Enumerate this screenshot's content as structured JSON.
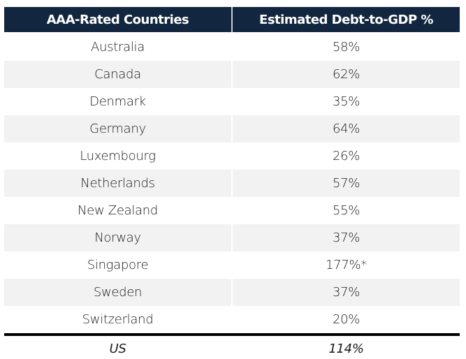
{
  "header": {
    "country_label": "AAA-Rated Countries",
    "value_label": "Estimated Debt-to-GDP %"
  },
  "rows": [
    {
      "country": "Australia",
      "value": "58%"
    },
    {
      "country": "Canada",
      "value": "62%"
    },
    {
      "country": "Denmark",
      "value": "35%"
    },
    {
      "country": "Germany",
      "value": "64%"
    },
    {
      "country": "Luxembourg",
      "value": "26%"
    },
    {
      "country": "Netherlands",
      "value": "57%"
    },
    {
      "country": "New Zealand",
      "value": "55%"
    },
    {
      "country": "Norway",
      "value": "37%"
    },
    {
      "country": "Singapore",
      "value": "177%*"
    },
    {
      "country": "Sweden",
      "value": "37%"
    },
    {
      "country": "Switzerland",
      "value": "20%"
    }
  ],
  "comparison": {
    "country": "US",
    "value": "114%"
  },
  "colors": {
    "header_bg": "#12273f",
    "header_text": "#ffffff",
    "stripe": "#f2f2f2",
    "rule": "#000000"
  }
}
